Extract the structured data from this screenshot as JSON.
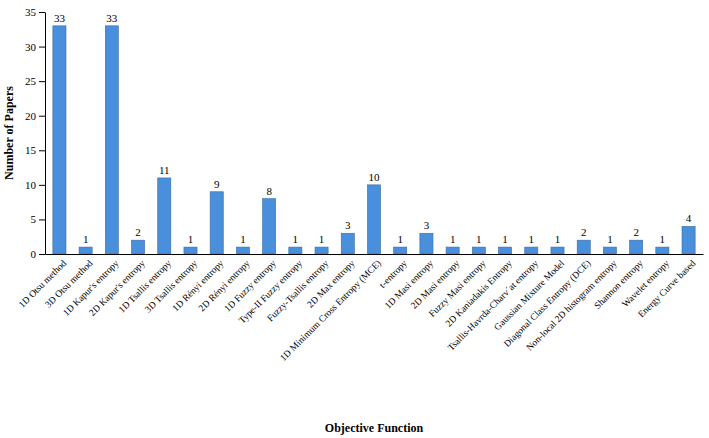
{
  "chart_data": {
    "type": "bar",
    "x_label": "Objective Function",
    "y_label": "Number of Papers",
    "categories": [
      "1D Otsu method",
      "3D Otsu method",
      "1D Kapur's entropy",
      "2D Kapur's entropy",
      "1D Tsallis entropy",
      "3D Tsallis entropy",
      "1D Rényi entropy",
      "2D Rényi entropy",
      "1D Fuzzy entropy",
      "Type-II Fuzzy entropy",
      "Fuzzy-Tsallis entropy",
      "2D Max entropy",
      "1D Minimum Cross Entropy (MCE)",
      "t-entropy",
      "1D Masi entropy",
      "2D Masi entropy",
      "Fuzzy Masi entropy",
      "2D Kaniadakis Entropy",
      "Tsallis-Havrda-Charv´at entropy",
      "Gaussian Mixture Model",
      "Diagonal Class Entropy (DCE)",
      "Non-local 2D histogram entropy",
      "Shannon entropy",
      "Wavelet entropy",
      "Energy Curve based"
    ],
    "values": [
      33,
      1,
      33,
      2,
      11,
      1,
      9,
      1,
      8,
      1,
      1,
      3,
      10,
      1,
      3,
      1,
      1,
      1,
      1,
      1,
      2,
      1,
      2,
      1,
      4
    ],
    "color": "#4a8fdc",
    "ylim": [
      0,
      35
    ],
    "yticks": [
      0,
      5,
      10,
      15,
      20,
      25,
      30,
      35
    ],
    "grid": false,
    "data_labels": true
  }
}
